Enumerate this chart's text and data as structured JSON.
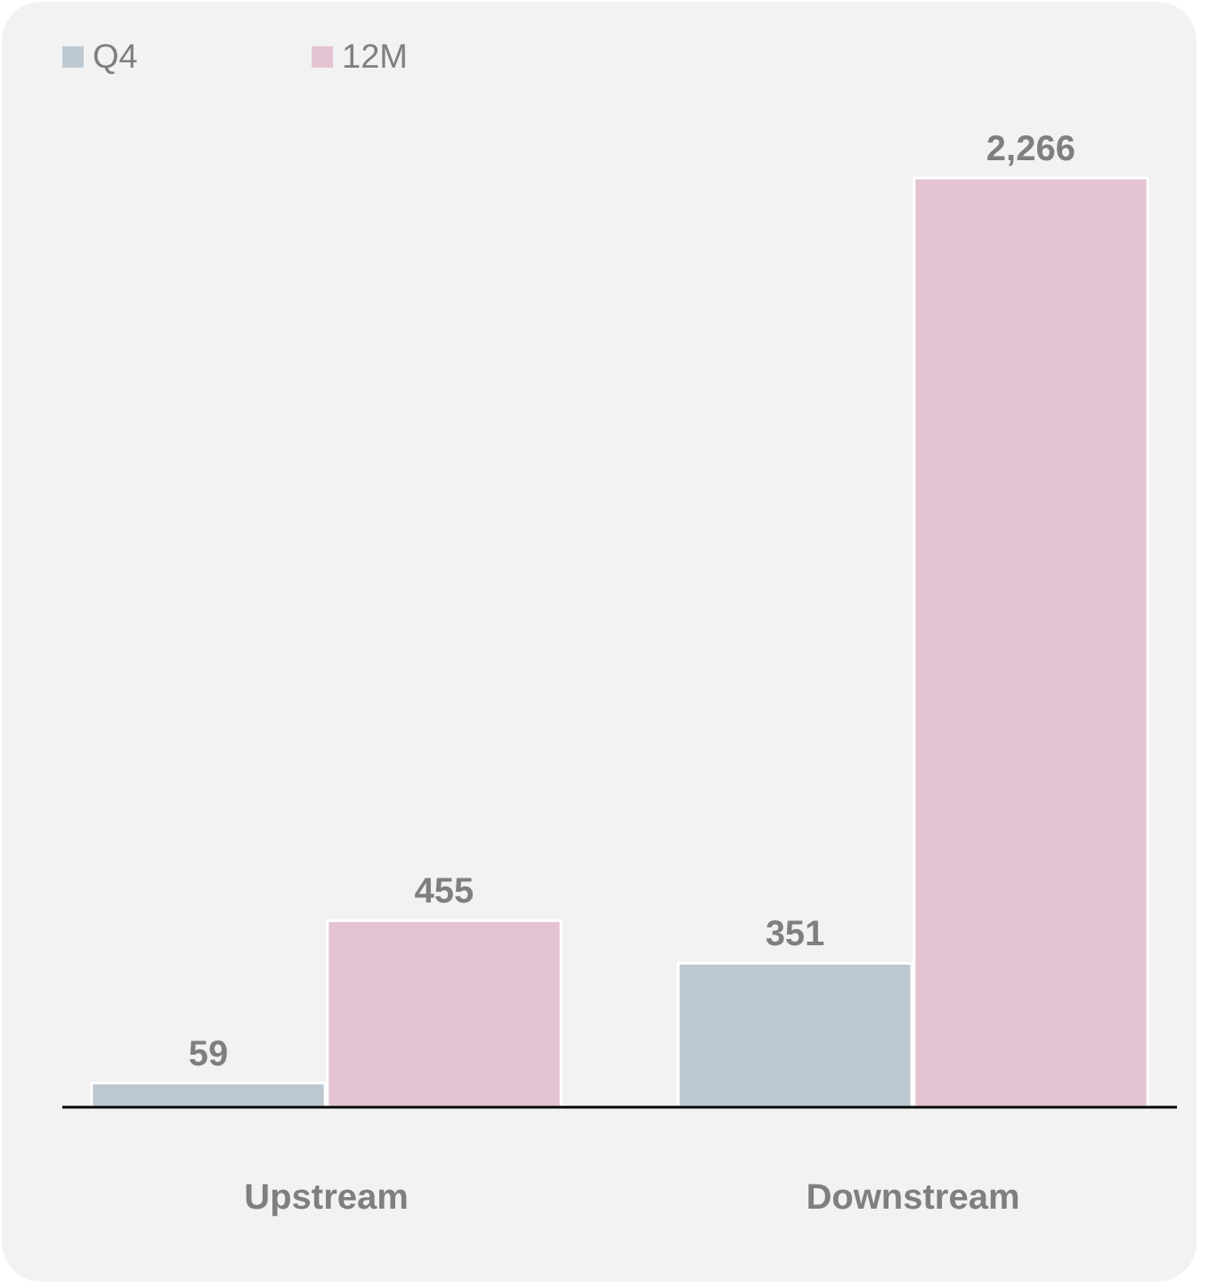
{
  "chart_data": {
    "type": "bar",
    "categories": [
      "Upstream",
      "Downstream"
    ],
    "series": [
      {
        "name": "Q4",
        "color": "#bcc8d1",
        "values": [
          59,
          351
        ],
        "value_labels": [
          "59",
          "351"
        ]
      },
      {
        "name": "12M",
        "color": "#e4c3d3",
        "values": [
          455,
          2266
        ],
        "value_labels": [
          "455",
          "2,266"
        ]
      }
    ],
    "legend": "top left",
    "grid": false
  }
}
